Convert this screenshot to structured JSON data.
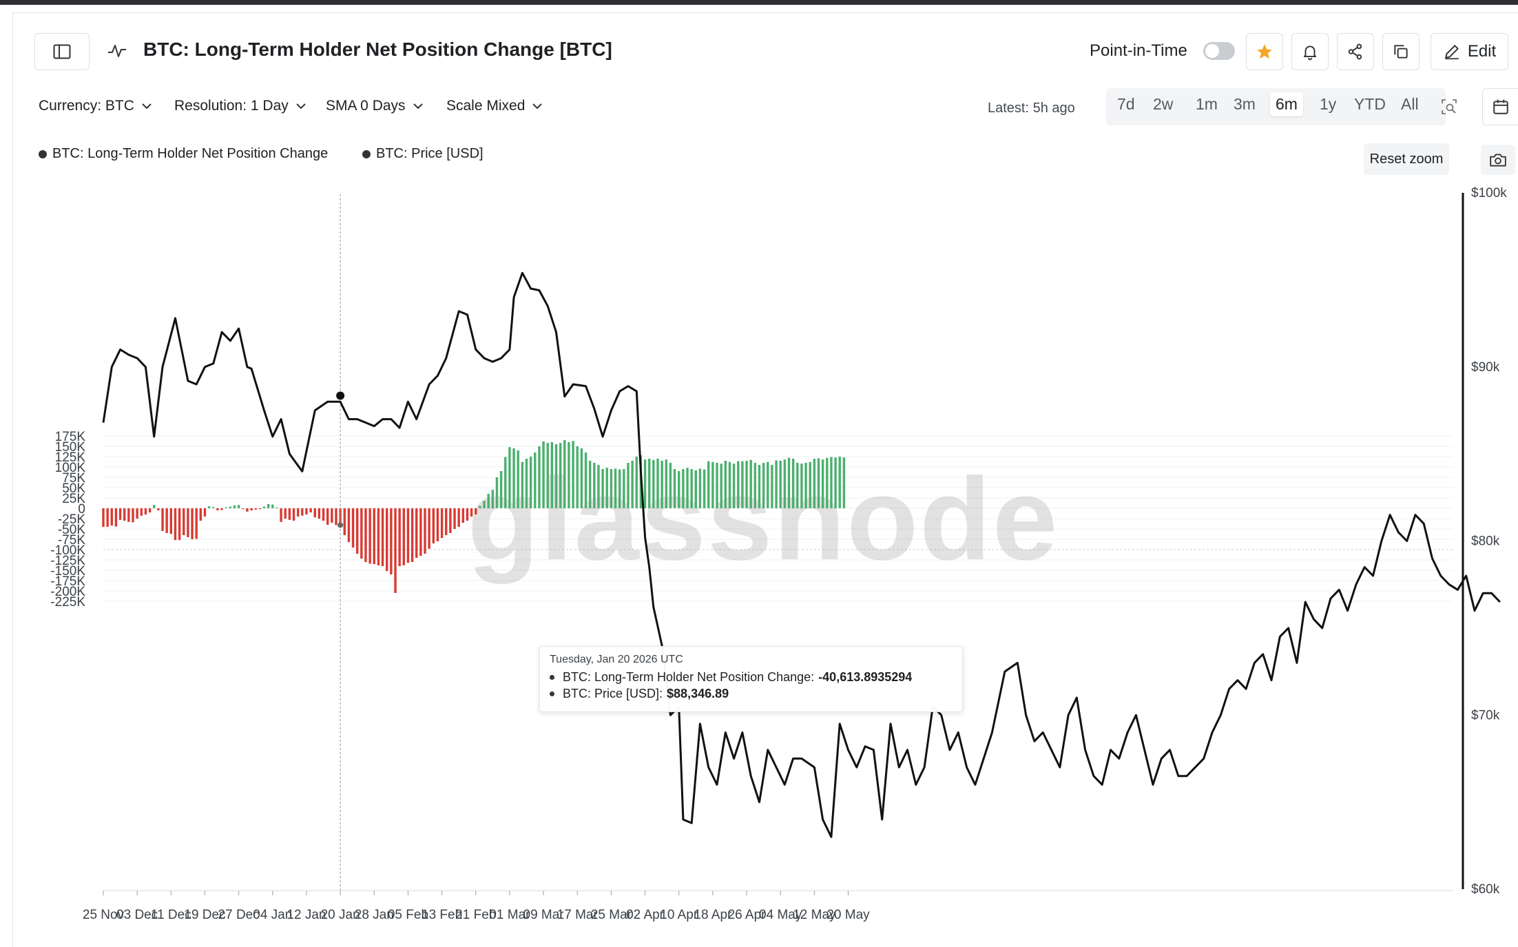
{
  "header": {
    "title": "BTC: Long-Term Holder Net Position Change [BTC]",
    "point_in_time_label": "Point-in-Time",
    "edit_label": "Edit"
  },
  "controls": {
    "currency": "Currency: BTC",
    "resolution": "Resolution: 1 Day",
    "sma": "SMA 0 Days",
    "scale": "Scale Mixed",
    "latest": "Latest: 5h ago",
    "ranges": [
      "7d",
      "2w",
      "1m",
      "3m",
      "6m",
      "1y",
      "YTD",
      "All"
    ],
    "active_range": "6m"
  },
  "legend": {
    "series1": "BTC: Long-Term Holder Net Position Change",
    "series2": "BTC: Price [USD]",
    "reset_zoom": "Reset zoom"
  },
  "tooltip": {
    "date": "Tuesday, Jan 20 2026 UTC",
    "row1_label": "BTC: Long-Term Holder Net Position Change:",
    "row1_value": "-40,613.8935294",
    "row2_label": "BTC: Price [USD]:",
    "row2_value": "$88,346.89"
  },
  "watermark": "glassnode",
  "colors": {
    "positive": "#4caf6e",
    "negative": "#d93a32",
    "price_line": "#111111"
  },
  "chart_data": {
    "type": "bar",
    "y_left_ticks": [
      "175K",
      "150K",
      "125K",
      "100K",
      "75K",
      "50K",
      "25K",
      "0",
      "-25K",
      "-50K",
      "-75K",
      "-100K",
      "-125K",
      "-150K",
      "-175K",
      "-200K",
      "-225K"
    ],
    "y_right_ticks": [
      "$100k",
      "$90k",
      "$80k",
      "$70k",
      "$60k"
    ],
    "x_ticks": [
      "25 Nov",
      "03 Dec",
      "11 Dec",
      "19 Dec",
      "27 Dec",
      "04 Jan",
      "12 Jan",
      "20 Jan",
      "28 Jan",
      "05 Feb",
      "13 Feb",
      "21 Feb",
      "01 Mar",
      "09 Mar",
      "17 Mar",
      "25 Mar",
      "02 Apr",
      "10 Apr",
      "18 Apr",
      "26 Apr",
      "04 May",
      "12 May",
      "20 May"
    ],
    "ylim_left": [
      -230000,
      185000
    ],
    "ylim_right": [
      60000,
      100000
    ],
    "series": [
      {
        "name": "BTC: Long-Term Holder Net Position Change",
        "values": [
          -45000,
          -45000,
          -42000,
          -44000,
          -28000,
          -30000,
          -33000,
          -34000,
          -25000,
          -18000,
          -15000,
          -10000,
          8000,
          -5000,
          -55000,
          -60000,
          -62000,
          -77000,
          -77000,
          -65000,
          -70000,
          -75000,
          -74000,
          -30000,
          -20000,
          5000,
          3000,
          -5000,
          -4000,
          2000,
          4000,
          7000,
          8000,
          -2000,
          -8000,
          -5000,
          -3000,
          -2000,
          4000,
          10000,
          9000,
          2000,
          -33000,
          -25000,
          -28000,
          -30000,
          -20000,
          -18000,
          -15000,
          -10000,
          -22000,
          -25000,
          -30000,
          -40000,
          -35000,
          -40613,
          -46000,
          -65000,
          -82000,
          -95000,
          -110000,
          -122000,
          -130000,
          -134000,
          -135000,
          -138000,
          -140000,
          -152000,
          -160000,
          -205000,
          -140000,
          -138000,
          -132000,
          -130000,
          -120000,
          -115000,
          -110000,
          -98000,
          -85000,
          -80000,
          -72000,
          -65000,
          -60000,
          -50000,
          -45000,
          -35000,
          -30000,
          -20000,
          -15000,
          6000,
          18000,
          35000,
          45000,
          75000,
          90000,
          124000,
          148000,
          145000,
          140000,
          112000,
          120000,
          125000,
          135000,
          150000,
          162000,
          158000,
          160000,
          155000,
          158000,
          165000,
          160000,
          163000,
          150000,
          145000,
          135000,
          115000,
          110000,
          105000,
          95000,
          98000,
          95000,
          96000,
          94000,
          95000,
          110000,
          115000,
          125000,
          128000,
          118000,
          120000,
          117000,
          120000,
          115000,
          118000,
          110000,
          95000,
          90000,
          95000,
          98000,
          95000,
          92000,
          96000,
          94000,
          114000,
          112000,
          110000,
          108000,
          115000,
          112000,
          108000,
          114000,
          114000,
          115000,
          117000,
          110000,
          105000,
          110000,
          112000,
          105000,
          116000,
          115000,
          118000,
          122000,
          120000,
          110000,
          108000,
          110000,
          112000,
          120000,
          121000,
          118000,
          122000,
          124000,
          123000,
          125000,
          123000
        ],
        "color_rule": "green above zero, red below zero"
      },
      {
        "name": "BTC: Price [USD]",
        "points": [
          [
            0,
            86800
          ],
          [
            2,
            90000
          ],
          [
            4,
            91000
          ],
          [
            6,
            90700
          ],
          [
            8,
            90500
          ],
          [
            10,
            90000
          ],
          [
            12,
            86000
          ],
          [
            14,
            90000
          ],
          [
            17,
            92800
          ],
          [
            20,
            89200
          ],
          [
            22,
            89000
          ],
          [
            24,
            90000
          ],
          [
            26,
            90200
          ],
          [
            28,
            92000
          ],
          [
            30,
            91500
          ],
          [
            32,
            92200
          ],
          [
            34,
            90000
          ],
          [
            35,
            89900
          ],
          [
            38,
            87500
          ],
          [
            40,
            86000
          ],
          [
            42,
            87000
          ],
          [
            44,
            85000
          ],
          [
            47,
            84000
          ],
          [
            50,
            87500
          ],
          [
            53,
            88000
          ],
          [
            56,
            88000
          ],
          [
            58,
            87000
          ],
          [
            60,
            87000
          ],
          [
            62,
            86800
          ],
          [
            64,
            86600
          ],
          [
            66,
            87000
          ],
          [
            68,
            87000
          ],
          [
            70,
            86500
          ],
          [
            72,
            88000
          ],
          [
            74,
            87000
          ],
          [
            77,
            89000
          ],
          [
            79,
            89500
          ],
          [
            81,
            90500
          ],
          [
            84,
            93200
          ],
          [
            86,
            93000
          ],
          [
            88,
            91000
          ],
          [
            90,
            90500
          ],
          [
            92,
            90300
          ],
          [
            94,
            90500
          ],
          [
            96,
            91000
          ],
          [
            97,
            94000
          ],
          [
            99,
            95400
          ],
          [
            101,
            94500
          ],
          [
            103,
            94400
          ],
          [
            105,
            93500
          ],
          [
            107,
            92000
          ],
          [
            109,
            88300
          ],
          [
            111,
            89000
          ],
          [
            114,
            88900
          ],
          [
            116,
            87600
          ],
          [
            118,
            86000
          ],
          [
            120,
            87500
          ],
          [
            122,
            88600
          ],
          [
            124,
            88900
          ],
          [
            126,
            88600
          ],
          [
            127,
            84000
          ],
          [
            128,
            80200
          ],
          [
            129,
            78500
          ],
          [
            130,
            76200
          ],
          [
            132,
            74000
          ],
          [
            134,
            70000
          ],
          [
            136,
            70500
          ],
          [
            137,
            64000
          ],
          [
            139,
            63800
          ],
          [
            141,
            69500
          ],
          [
            143,
            67000
          ],
          [
            145,
            66000
          ],
          [
            147,
            69000
          ],
          [
            149,
            67500
          ],
          [
            151,
            69000
          ],
          [
            153,
            66500
          ],
          [
            155,
            65000
          ],
          [
            157,
            68000
          ],
          [
            159,
            67000
          ],
          [
            161,
            66000
          ],
          [
            163,
            67500
          ],
          [
            165,
            67500
          ],
          [
            168,
            67000
          ],
          [
            170,
            64000
          ],
          [
            172,
            63000
          ],
          [
            174,
            69500
          ],
          [
            176,
            68000
          ],
          [
            178,
            67000
          ],
          [
            180,
            68200
          ],
          [
            182,
            68000
          ],
          [
            184,
            64000
          ],
          [
            186,
            69500
          ],
          [
            188,
            67000
          ],
          [
            190,
            68000
          ],
          [
            192,
            66000
          ],
          [
            194,
            67000
          ],
          [
            196,
            70500
          ],
          [
            198,
            70000
          ],
          [
            200,
            68000
          ],
          [
            202,
            69000
          ],
          [
            204,
            67000
          ],
          [
            206,
            66000
          ],
          [
            208,
            67500
          ],
          [
            210,
            69000
          ],
          [
            213,
            72500
          ],
          [
            216,
            73000
          ],
          [
            218,
            70000
          ],
          [
            220,
            68500
          ],
          [
            222,
            69000
          ],
          [
            224,
            68000
          ],
          [
            226,
            67000
          ],
          [
            228,
            70000
          ],
          [
            230,
            71000
          ],
          [
            232,
            68000
          ],
          [
            234,
            66500
          ],
          [
            236,
            66000
          ],
          [
            238,
            68000
          ],
          [
            240,
            67500
          ],
          [
            242,
            69000
          ],
          [
            244,
            70000
          ],
          [
            246,
            68000
          ],
          [
            248,
            66000
          ],
          [
            250,
            67500
          ],
          [
            252,
            68000
          ],
          [
            254,
            66500
          ],
          [
            256,
            66500
          ],
          [
            258,
            67000
          ],
          [
            260,
            67500
          ],
          [
            262,
            69000
          ],
          [
            264,
            70000
          ],
          [
            266,
            71500
          ],
          [
            268,
            72000
          ],
          [
            270,
            71500
          ],
          [
            272,
            73000
          ],
          [
            274,
            73500
          ],
          [
            276,
            72000
          ],
          [
            278,
            74500
          ],
          [
            280,
            75000
          ],
          [
            282,
            73000
          ],
          [
            284,
            76500
          ],
          [
            286,
            75500
          ],
          [
            288,
            75000
          ],
          [
            290,
            76700
          ],
          [
            292,
            77200
          ],
          [
            294,
            76000
          ],
          [
            296,
            77500
          ],
          [
            298,
            78500
          ],
          [
            300,
            78000
          ],
          [
            302,
            80000
          ],
          [
            304,
            81500
          ],
          [
            306,
            80500
          ],
          [
            308,
            80000
          ],
          [
            310,
            81500
          ],
          [
            312,
            81000
          ],
          [
            314,
            79000
          ],
          [
            316,
            78000
          ],
          [
            318,
            77500
          ],
          [
            320,
            77200
          ],
          [
            322,
            78000
          ],
          [
            324,
            76000
          ],
          [
            326,
            77000
          ],
          [
            328,
            77000
          ],
          [
            330,
            76500
          ]
        ],
        "scale": "right"
      }
    ]
  }
}
